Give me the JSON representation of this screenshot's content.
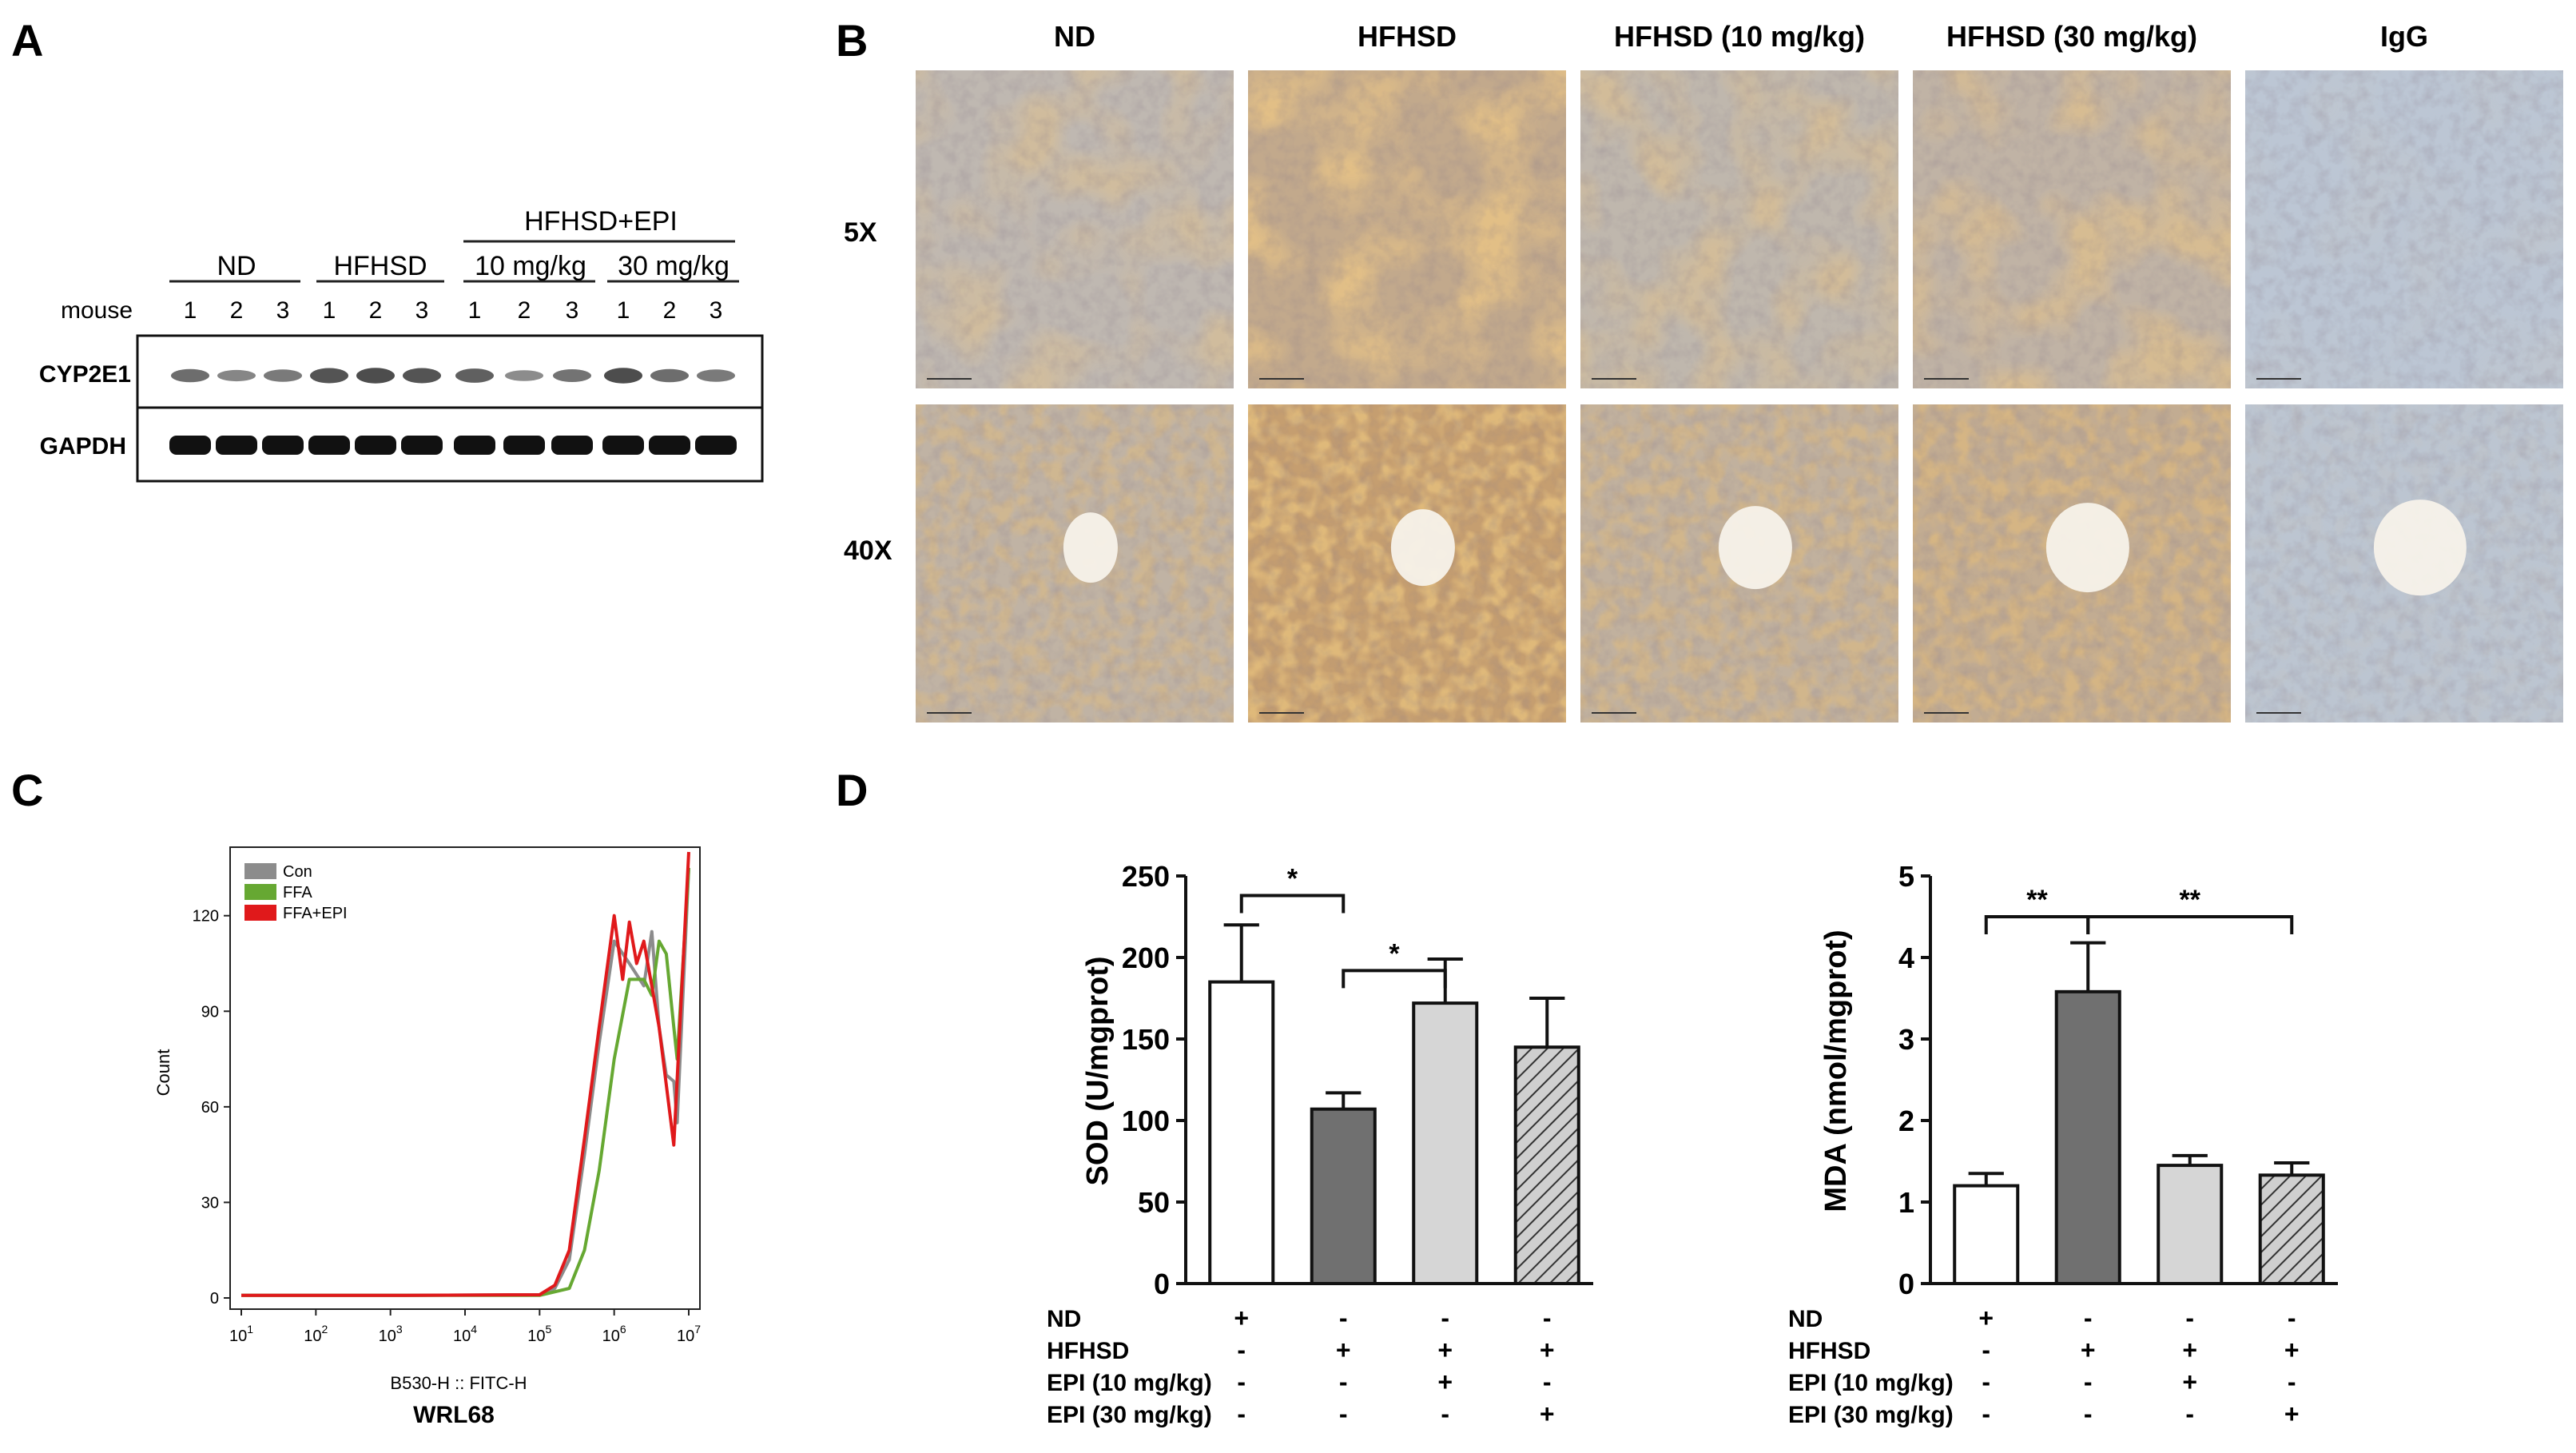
{
  "panel_letters": [
    "A",
    "B",
    "C",
    "D"
  ],
  "panel_a": {
    "group_labels": [
      "ND",
      "HFHSD",
      "HFHSD+EPI",
      "10 mg/kg",
      "30 mg/kg"
    ],
    "mouse_label": "mouse",
    "lane_numbers": [
      "1",
      "2",
      "3",
      "1",
      "2",
      "3",
      "1",
      "2",
      "3",
      "1",
      "2",
      "3"
    ],
    "row_labels": [
      "CYP2E1",
      "GAPDH"
    ],
    "cyp2e1_band_intensity": [
      0.55,
      0.35,
      0.45,
      0.75,
      0.8,
      0.75,
      0.65,
      0.3,
      0.5,
      0.8,
      0.55,
      0.45
    ],
    "gapdh_band_intensity": [
      1,
      1,
      1,
      1,
      1,
      1,
      1,
      1,
      1,
      1,
      1,
      1
    ]
  },
  "panel_b": {
    "column_headers": [
      "ND",
      "HFHSD",
      "HFHSD (10 mg/kg)",
      "HFHSD (30 mg/kg)",
      "IgG"
    ],
    "row_labels": [
      "5X",
      "40X"
    ],
    "stain_intensity": [
      0.45,
      0.9,
      0.5,
      0.6,
      0.05
    ],
    "stain_color": "#c98a3e",
    "background_color": "#bcc8d8"
  },
  "panel_c": {
    "y_axis_label": "Count",
    "y_ticks": [
      "0",
      "30",
      "60",
      "90",
      "120"
    ],
    "x_ticks": [
      "10",
      "10",
      "10",
      "10",
      "10",
      "10",
      "10"
    ],
    "x_tick_exponents": [
      "1",
      "2",
      "3",
      "4",
      "5",
      "6",
      "7"
    ],
    "x_axis_label": "B530-H :: FITC-H",
    "cell_line_label": "WRL68",
    "legend": [
      {
        "label": "Con",
        "color": "#8c8c8c"
      },
      {
        "label": "FFA",
        "color": "#66a832"
      },
      {
        "label": "FFA+EPI",
        "color": "#e0191b"
      }
    ]
  },
  "chart_data": [
    {
      "type": "line",
      "xscale": "log",
      "xlim": [
        10,
        10000000
      ],
      "ylim": [
        0,
        140
      ],
      "ylabel": "Count",
      "xlabel": "B530-H :: FITC-H",
      "grid": false,
      "legend_position": "top-left",
      "series": [
        {
          "name": "Con",
          "color": "#8c8c8c",
          "x": [
            10,
            1000,
            100000,
            160000,
            250000,
            400000,
            630000,
            1000000,
            1600000,
            2500000,
            3200000,
            4000000,
            5000000,
            6300000,
            7000000,
            10000000
          ],
          "y": [
            0.8,
            0.8,
            1,
            3,
            12,
            45,
            80,
            112,
            105,
            98,
            115,
            85,
            70,
            68,
            55,
            135
          ]
        },
        {
          "name": "FFA",
          "color": "#66a832",
          "x": [
            10,
            1000,
            100000,
            250000,
            400000,
            630000,
            1000000,
            1600000,
            2500000,
            3200000,
            4000000,
            5000000,
            6300000,
            7000000,
            10000000
          ],
          "y": [
            0.8,
            0.8,
            0.8,
            3,
            15,
            40,
            75,
            100,
            100,
            95,
            112,
            108,
            85,
            75,
            135
          ]
        },
        {
          "name": "FFA+EPI",
          "color": "#e0191b",
          "x": [
            10,
            1000,
            100000,
            160000,
            250000,
            400000,
            630000,
            1000000,
            1300000,
            1600000,
            2000000,
            2500000,
            4000000,
            6300000,
            10000000
          ],
          "y": [
            0.8,
            0.8,
            1,
            4,
            15,
            50,
            85,
            120,
            100,
            118,
            105,
            112,
            85,
            48,
            140
          ]
        }
      ]
    },
    {
      "type": "bar",
      "ylabel": "SOD (U/mgprot)",
      "ylim": [
        0,
        250
      ],
      "yticks": [
        "0",
        "50",
        "100",
        "150",
        "200",
        "250"
      ],
      "categories": [
        "ND",
        "HFHSD",
        "HFHSD+EPI (10 mg/kg)",
        "HFHSD+EPI (30 mg/kg)"
      ],
      "values": [
        185,
        107,
        172,
        145
      ],
      "errors": [
        35,
        10,
        27,
        30
      ],
      "significance": [
        {
          "from": 0,
          "to": 1,
          "label": "*"
        },
        {
          "from": 1,
          "to": 2,
          "label": "*"
        }
      ]
    },
    {
      "type": "bar",
      "ylabel": "MDA (nmol/mgprot)",
      "ylim": [
        0,
        5
      ],
      "yticks": [
        "0",
        "1",
        "2",
        "3",
        "4",
        "5"
      ],
      "categories": [
        "ND",
        "HFHSD",
        "HFHSD+EPI (10 mg/kg)",
        "HFHSD+EPI (30 mg/kg)"
      ],
      "values": [
        1.2,
        3.58,
        1.45,
        1.33
      ],
      "errors": [
        0.15,
        0.6,
        0.12,
        0.15
      ],
      "significance": [
        {
          "from": 0,
          "to": 1,
          "label": "**"
        },
        {
          "from": 1,
          "to": 3,
          "label": "**"
        }
      ]
    }
  ],
  "panel_d": {
    "bar_styles": [
      {
        "fill": "#ffffff",
        "pattern": "none"
      },
      {
        "fill": "#707070",
        "pattern": "none"
      },
      {
        "fill": "#d6d6d6",
        "pattern": "none"
      },
      {
        "fill": "#cfcfcf",
        "pattern": "hatch"
      }
    ],
    "treatment_rows": [
      {
        "label": "ND",
        "marks": [
          "+",
          "-",
          "-",
          "-"
        ]
      },
      {
        "label": "HFHSD",
        "marks": [
          "-",
          "+",
          "+",
          "+"
        ]
      },
      {
        "label": "EPI (10 mg/kg)",
        "marks": [
          "-",
          "-",
          "+",
          "-"
        ]
      },
      {
        "label": "EPI (30 mg/kg)",
        "marks": [
          "-",
          "-",
          "-",
          "+"
        ]
      }
    ]
  }
}
